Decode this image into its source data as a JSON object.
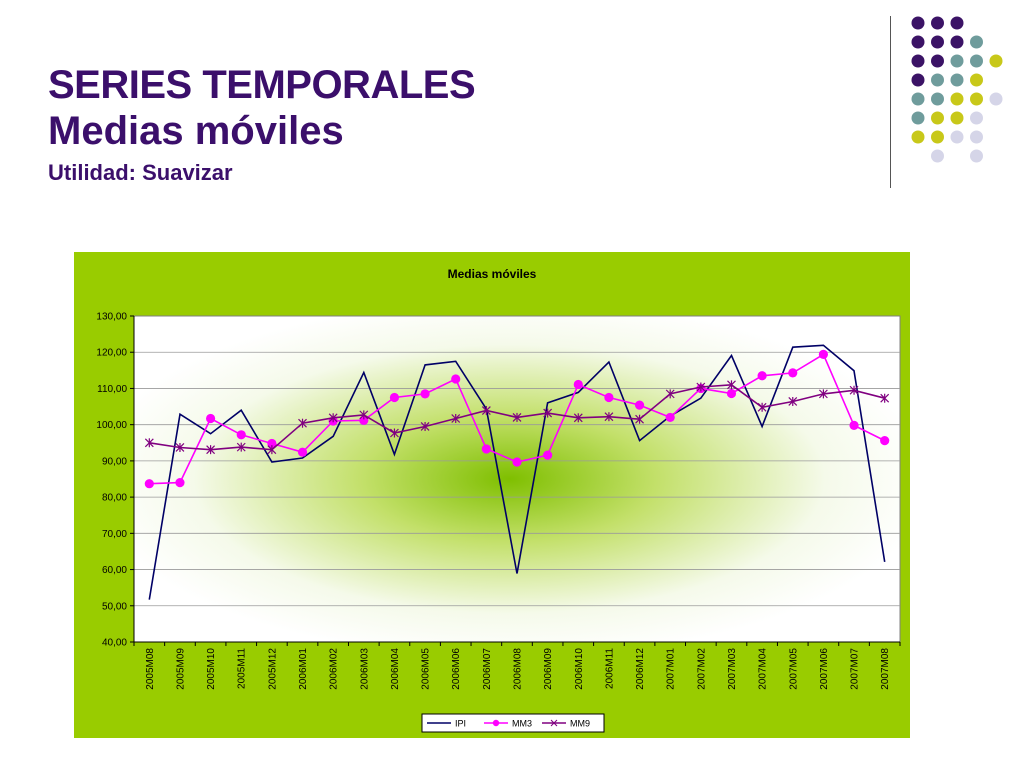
{
  "slide": {
    "title_line1": "SERIES TEMPORALES",
    "title_line2": "Medias móviles",
    "subtitle": "Utilidad: Suavizar"
  },
  "colors": {
    "title": "#3b0f6b",
    "chart_bg": "#99cc00",
    "dot_purple": "#3b1366",
    "dot_teal": "#6f9c9c",
    "dot_yellow": "#c8c819",
    "dot_lavender": "#d5d5e8"
  },
  "chart_data": {
    "type": "line",
    "title": "Medias móviles",
    "xlabel": "",
    "ylabel": "",
    "ylim": [
      40,
      130
    ],
    "yticks": [
      "40,00",
      "50,00",
      "60,00",
      "70,00",
      "80,00",
      "90,00",
      "100,00",
      "110,00",
      "120,00",
      "130,00"
    ],
    "grid": true,
    "legend": "bottom",
    "categories": [
      "2005M08",
      "2005M09",
      "2005M10",
      "2005M11",
      "2005M12",
      "2006M01",
      "2006M02",
      "2006M03",
      "2006M04",
      "2006M05",
      "2006M06",
      "2006M07",
      "2006M08",
      "2006M09",
      "2006M10",
      "2006M11",
      "2006M12",
      "2007M01",
      "2007M02",
      "2007M03",
      "2007M04",
      "2007M05",
      "2007M06",
      "2007M07",
      "2007M08"
    ],
    "series": [
      {
        "name": "IPI",
        "color": "#000066",
        "marker": "none",
        "values": [
          51.7,
          102.9,
          97.5,
          104.0,
          89.7,
          90.8,
          96.8,
          114.4,
          91.8,
          116.5,
          117.5,
          104.3,
          58.9,
          106.0,
          108.9,
          117.3,
          95.6,
          102.4,
          107.3,
          119.1,
          99.5,
          121.4,
          121.9,
          114.9,
          62.1
        ]
      },
      {
        "name": "MM3",
        "color": "#ff00ff",
        "marker": "circle",
        "values": [
          83.7,
          84.0,
          101.7,
          97.2,
          94.8,
          92.4,
          101.0,
          101.2,
          107.5,
          108.5,
          112.6,
          93.3,
          89.7,
          91.6,
          111.1,
          107.5,
          105.4,
          102.0,
          110.0,
          108.6,
          113.5,
          114.3,
          119.4,
          99.8,
          95.6
        ]
      },
      {
        "name": "MM9",
        "color": "#800080",
        "marker": "star",
        "values": [
          95.0,
          93.7,
          93.1,
          93.8,
          93.1,
          100.4,
          101.9,
          102.7,
          97.7,
          99.5,
          101.7,
          103.9,
          102.0,
          103.2,
          101.9,
          102.2,
          101.5,
          108.5,
          110.4,
          111.0,
          104.8,
          106.4,
          108.5,
          109.5,
          107.3
        ]
      }
    ]
  }
}
